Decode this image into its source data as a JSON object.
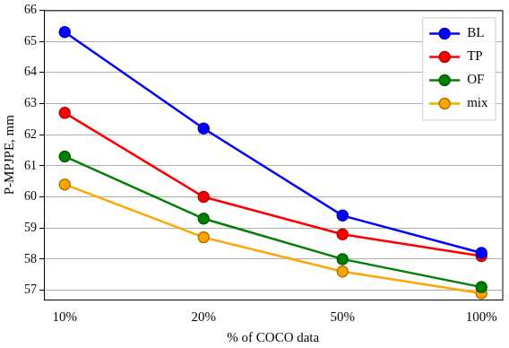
{
  "chart_data": {
    "type": "line",
    "x_label": "% of COCO data",
    "y_label": "P-MPJPE, mm",
    "categories": [
      "10%",
      "20%",
      "50%",
      "100%"
    ],
    "series": [
      {
        "name": "BL",
        "color": "#0000ff",
        "values": [
          65.3,
          62.2,
          59.4,
          58.2
        ]
      },
      {
        "name": "TP",
        "color": "#ff0000",
        "values": [
          62.7,
          60.0,
          58.8,
          58.1
        ]
      },
      {
        "name": "OF",
        "color": "#008000",
        "values": [
          61.3,
          59.3,
          58.0,
          57.1
        ]
      },
      {
        "name": "mix",
        "color": "#ffa500",
        "values": [
          60.4,
          58.7,
          57.6,
          56.9
        ]
      }
    ],
    "ylim": [
      56.7,
      66
    ],
    "yticks": [
      57,
      58,
      59,
      60,
      61,
      62,
      63,
      64,
      65,
      66
    ],
    "grid": true,
    "legend": "upper right",
    "marker": "circle"
  }
}
